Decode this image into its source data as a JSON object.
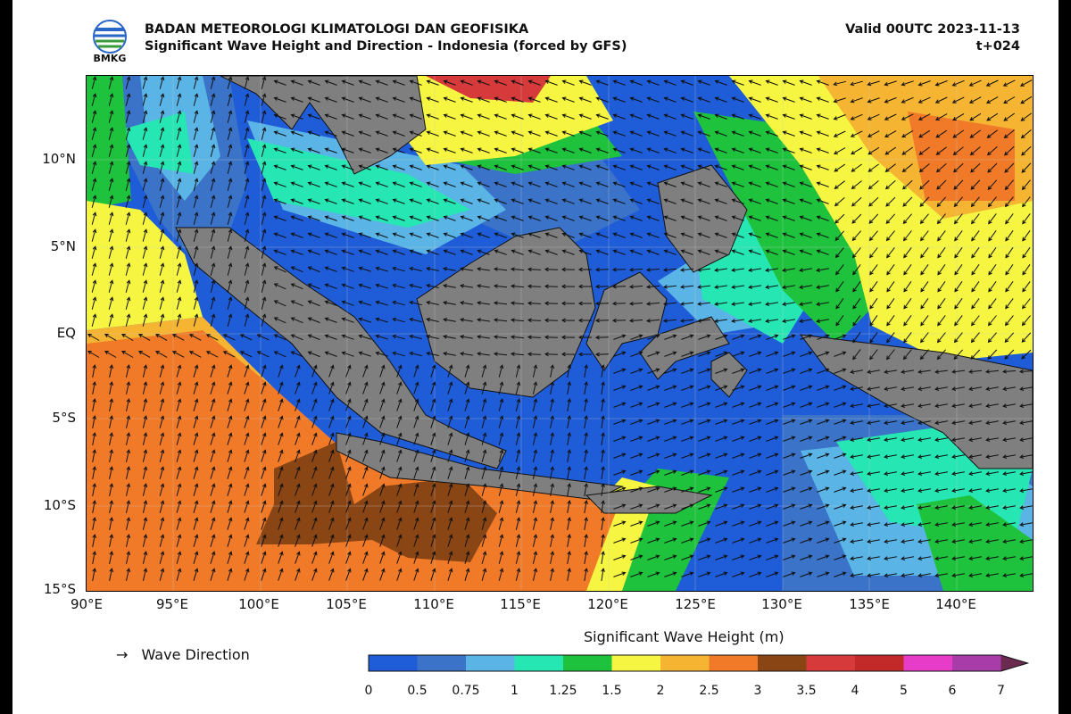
{
  "header": {
    "agency": "BADAN METEOROLOGI KLIMATOLOGI DAN GEOFISIKA",
    "product": "Significant Wave Height and Direction - Indonesia (forced by GFS)",
    "valid": "Valid 00UTC 2023-11-13",
    "lead": "t+024"
  },
  "logo": {
    "text": "BMKG",
    "icon": "bmkg-logo"
  },
  "map": {
    "lat_labels": [
      "10°N",
      "5°N",
      "EQ",
      "5°S",
      "10°S",
      "15°S"
    ],
    "lon_labels": [
      "90°E",
      "95°E",
      "100°E",
      "105°E",
      "110°E",
      "115°E",
      "120°E",
      "125°E",
      "130°E",
      "135°E",
      "140°E"
    ],
    "extent": {
      "lon": [
        90,
        144.5
      ],
      "lat": [
        -15,
        14.5
      ]
    }
  },
  "legend": {
    "arrow_symbol": "→",
    "arrow_label": "Wave Direction",
    "colorbar_title": "Significant Wave Height (m)",
    "ticks": [
      "0",
      "0.5",
      "0.75",
      "1",
      "1.25",
      "1.5",
      "2",
      "2.5",
      "3",
      "3.5",
      "4",
      "5",
      "6",
      "7"
    ],
    "colors": [
      "#1e5cd8",
      "#3a73c7",
      "#5ab4e6",
      "#26e6b3",
      "#1ec23c",
      "#f5f542",
      "#f5b432",
      "#f07a28",
      "#8a4514",
      "#d63a3a",
      "#c22a2a",
      "#e63cc8",
      "#a83ca8"
    ],
    "land_color": "#7f7f7f"
  }
}
